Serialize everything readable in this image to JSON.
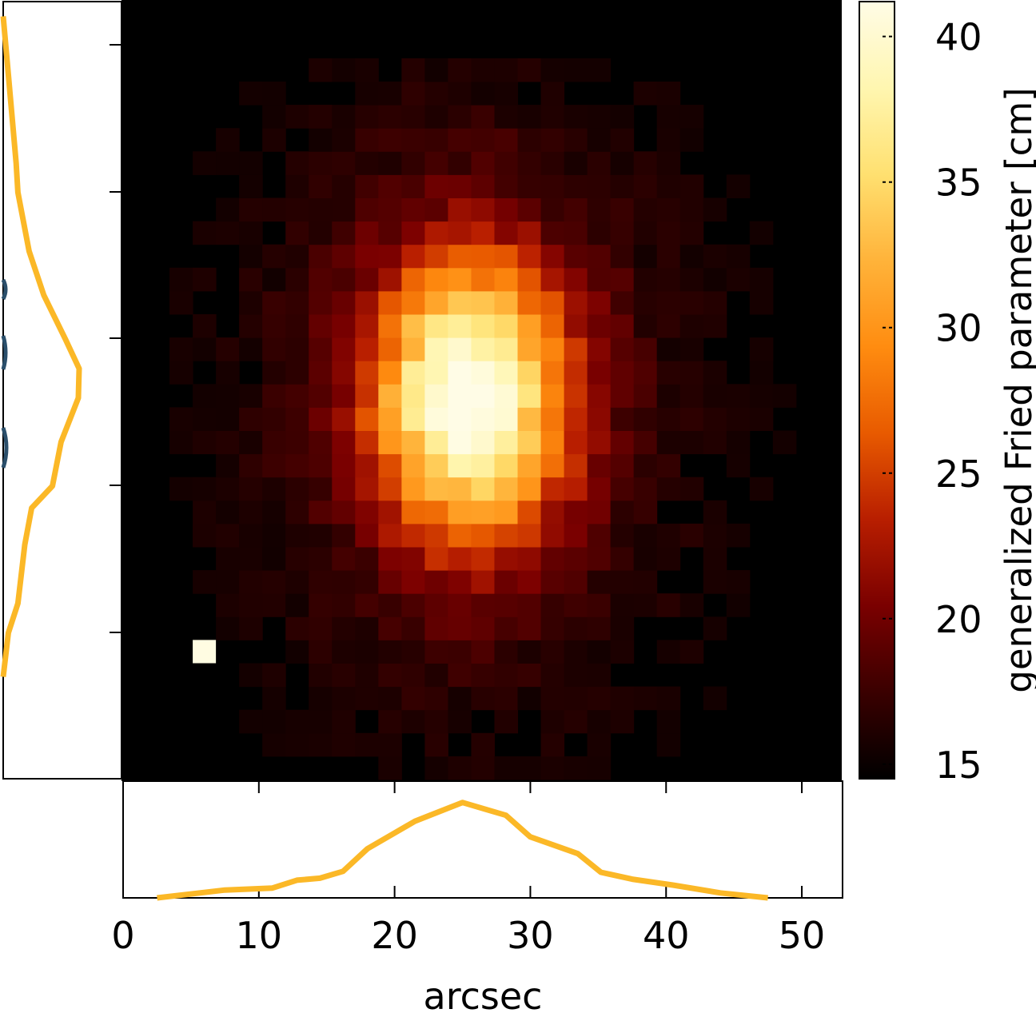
{
  "chart_data": [
    {
      "type": "heatmap",
      "title": "",
      "xlabel": "",
      "ylabel": "",
      "grid": false,
      "grid_size": [
        31,
        31
      ],
      "xlim": [
        0,
        53
      ],
      "ylim": [
        0,
        53
      ],
      "peak_center": [
        25.5,
        28.0
      ],
      "peak_sigma": [
        5.0,
        7.2
      ],
      "peak_value": 40,
      "background_value": 14.5,
      "outlier_pixel": {
        "x": 6,
        "y": 10,
        "value": 41
      },
      "colorbar": {
        "label": "generalized Fried parameter [cm]",
        "range": [
          14.5,
          41.2
        ],
        "ticks": [
          "15",
          "20",
          "25",
          "30",
          "35",
          "40"
        ],
        "tick_values": [
          15,
          20,
          25,
          30,
          35,
          40
        ],
        "colormap": [
          "#000000",
          "#3a0000",
          "#7a0000",
          "#b81e00",
          "#e85a00",
          "#ff8c10",
          "#ffb33a",
          "#ffe070",
          "#fff6b0",
          "#fffce6"
        ]
      }
    },
    {
      "type": "line",
      "xlabel": "arcsec",
      "xlim": [
        0,
        53
      ],
      "x_ticks": [
        "0",
        "10",
        "20",
        "30",
        "40",
        "50"
      ],
      "x_tick_values": [
        0,
        10,
        20,
        30,
        40,
        50
      ],
      "series": [
        {
          "color": "#fbb827",
          "x": [
            2.5,
            7.5,
            11,
            12.8,
            14.5,
            16.2,
            18,
            21.5,
            25,
            28.2,
            30,
            33.5,
            35.2,
            37.5,
            40.5,
            44,
            47.5
          ],
          "y": [
            0.0,
            0.08,
            0.1,
            0.18,
            0.2,
            0.27,
            0.5,
            0.78,
            0.97,
            0.84,
            0.62,
            0.45,
            0.26,
            0.19,
            0.13,
            0.05,
            0.0
          ]
        }
      ]
    },
    {
      "type": "line",
      "orientation": "vertical",
      "ylim": [
        0,
        53
      ],
      "series": [
        {
          "color": "#fbb827",
          "y": [
            52,
            48,
            42,
            40,
            36,
            33,
            30,
            28,
            26,
            23,
            20,
            18.5,
            16,
            12,
            10,
            7
          ],
          "x": [
            0.0,
            0.06,
            0.15,
            0.17,
            0.3,
            0.47,
            0.72,
            0.88,
            0.87,
            0.67,
            0.57,
            0.33,
            0.25,
            0.17,
            0.06,
            0.0
          ]
        }
      ]
    }
  ]
}
